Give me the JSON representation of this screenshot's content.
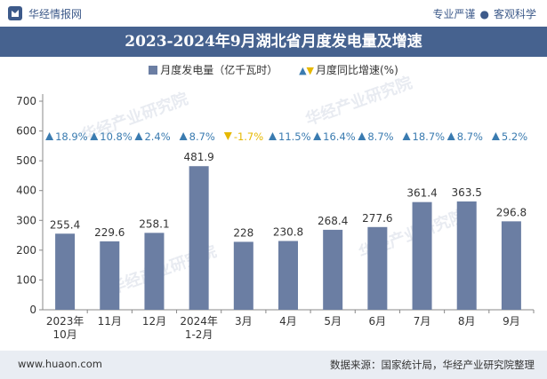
{
  "header": {
    "brand": "华经情报网",
    "tagline_left": "专业严谨",
    "tagline_sep": "●",
    "tagline_right": "客观科学"
  },
  "colors": {
    "bar": "#6b7ea3",
    "title_bg": "#46628f",
    "up": "#3a7bb0",
    "down": "#e6b800"
  },
  "watermark": "华经产业研究院",
  "footer": {
    "url": "www.huaon.com",
    "source": "数据来源：国家统计局，华经产业研究院整理"
  },
  "chart_data": {
    "type": "bar",
    "title": "2023-2024年9月湖北省月度发电量及增速",
    "legend": {
      "bar_label": "月度发电量（亿千瓦时）",
      "growth_label": "月度同比增速(%)"
    },
    "categories": [
      "2023年\n10月",
      "11月",
      "12月",
      "2024年\n1-2月",
      "3月",
      "4月",
      "5月",
      "6月",
      "7月",
      "8月",
      "9月"
    ],
    "series": [
      {
        "name": "月度发电量（亿千瓦时）",
        "values": [
          255.4,
          229.6,
          258.1,
          481.9,
          228,
          230.8,
          268.4,
          277.6,
          361.4,
          363.5,
          296.8
        ]
      },
      {
        "name": "月度同比增速(%)",
        "values": [
          18.9,
          10.8,
          2.4,
          8.7,
          -1.7,
          11.5,
          16.4,
          8.7,
          18.7,
          8.7,
          5.2
        ]
      }
    ],
    "value_labels": [
      "255.4",
      "229.6",
      "258.1",
      "481.9",
      "228",
      "230.8",
      "268.4",
      "277.6",
      "361.4",
      "363.5",
      "296.8"
    ],
    "growth_labels": [
      "18.9%",
      "10.8%",
      "2.4%",
      "8.7%",
      "-1.7%",
      "11.5%",
      "16.4%",
      "8.7%",
      "18.7%",
      "8.7%",
      "5.2%"
    ],
    "yticks": [
      0,
      100,
      200,
      300,
      400,
      500,
      600,
      700
    ],
    "ylim": [
      0,
      700
    ],
    "grid": false
  }
}
